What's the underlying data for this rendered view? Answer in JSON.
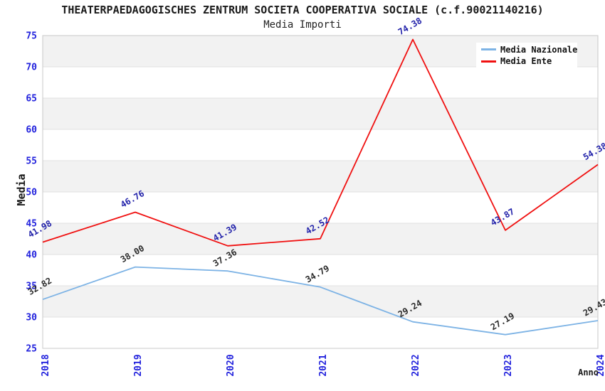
{
  "title": "THEATERPAEDAGOGISCHES ZENTRUM SOCIETA COOPERATIVA SOCIALE (c.f.90021140216)",
  "subtitle": "Media Importi",
  "style": {
    "tick_color": "#2222dd",
    "grid_color": "#e0e0e0",
    "band_color": "#f2f2f2",
    "plot_border_color": "#c8c8c8",
    "background": "#ffffff",
    "legend_background": "#ffffff"
  },
  "chart_data": {
    "type": "line",
    "title": "THEATERPAEDAGOGISCHES ZENTRUM SOCIETA COOPERATIVA SOCIALE (c.f.90021140216)",
    "subtitle": "Media Importi",
    "xlabel": "Anno",
    "ylabel": "Media",
    "categories": [
      "2018",
      "2019",
      "2020",
      "2021",
      "2022",
      "2023",
      "2024"
    ],
    "series": [
      {
        "name": "Media Nazionale",
        "color": "#7db3e5",
        "label_color": "#2b2b2b",
        "values": [
          32.82,
          38.0,
          37.36,
          34.79,
          29.24,
          27.19,
          29.43
        ]
      },
      {
        "name": "Media Ente",
        "color": "#f01010",
        "label_color": "#2222aa",
        "values": [
          41.98,
          46.76,
          41.39,
          42.52,
          74.38,
          43.87,
          54.38
        ]
      }
    ],
    "ylim": [
      25,
      75
    ],
    "ytick_step": 5,
    "yticks": [
      25,
      30,
      35,
      40,
      45,
      50,
      55,
      60,
      65,
      70,
      75
    ],
    "grid": true,
    "alternating_bands": true,
    "legend_position": "top-right",
    "data_labels": true,
    "data_label_decimals": 2
  }
}
